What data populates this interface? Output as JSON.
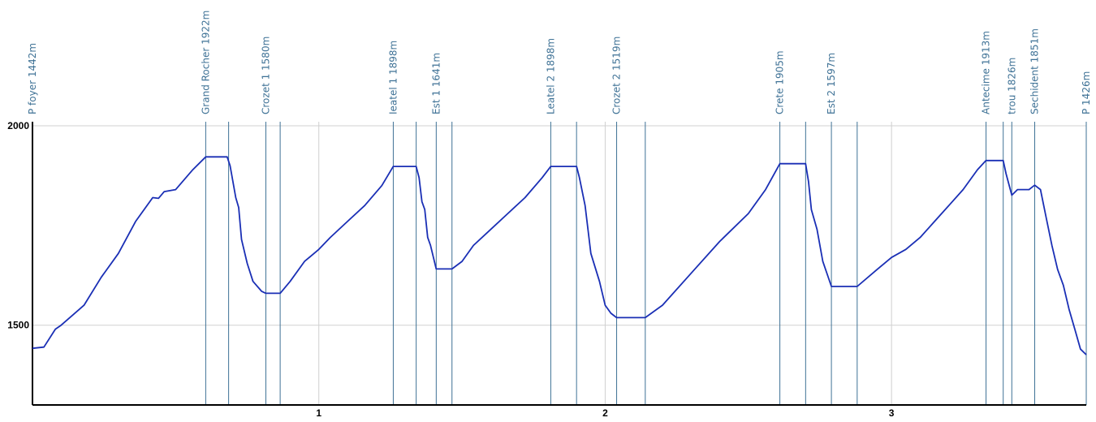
{
  "chart_data": {
    "type": "line",
    "title": "",
    "xlabel": "",
    "ylabel": "",
    "xlim": [
      0,
      3.68
    ],
    "ylim": [
      1300,
      2000
    ],
    "x_ticks": [
      1,
      2,
      3
    ],
    "y_ticks": [
      1500,
      2000
    ],
    "grid": true,
    "line_color": "#1a2fb5",
    "marker_color": "#3f7296",
    "waypoints": [
      {
        "label": "P foyer  1442m",
        "x": 0.0
      },
      {
        "label": "Grand Rocher  1922m",
        "x": 0.605
      },
      {
        "label": "Crozet 1  1580m",
        "x": 0.815
      },
      {
        "label": "Ieatel 1  1898m",
        "x": 1.26
      },
      {
        "label": "Est 1  1641m",
        "x": 1.41
      },
      {
        "label": "Leatel 2  1898m",
        "x": 1.81
      },
      {
        "label": "Crozet 2  1519m",
        "x": 2.04
      },
      {
        "label": "Crete  1905m",
        "x": 2.61
      },
      {
        "label": "Est 2  1597m",
        "x": 2.79
      },
      {
        "label": "Antecime  1913m",
        "x": 3.33
      },
      {
        "label": "trou  1826m",
        "x": 3.42
      },
      {
        "label": "Sechident  1851m",
        "x": 3.5
      },
      {
        "label": "P  1426m",
        "x": 3.68
      }
    ],
    "segment_markers_x": [
      0.685,
      0.865,
      1.34,
      1.465,
      1.9,
      2.14,
      2.7,
      2.88,
      3.39
    ],
    "series": [
      {
        "x": [
          0.0,
          0.04,
          0.08,
          0.1,
          0.18,
          0.24,
          0.3,
          0.36,
          0.42,
          0.44,
          0.46,
          0.5,
          0.56,
          0.605,
          0.68,
          0.69,
          0.71,
          0.72,
          0.73,
          0.75,
          0.77,
          0.8,
          0.815,
          0.865,
          0.9,
          0.95,
          1.0,
          1.04,
          1.1,
          1.16,
          1.22,
          1.26,
          1.34,
          1.35,
          1.36,
          1.37,
          1.38,
          1.39,
          1.41,
          1.465,
          1.5,
          1.54,
          1.6,
          1.66,
          1.72,
          1.78,
          1.81,
          1.9,
          1.91,
          1.93,
          1.95,
          1.98,
          2.0,
          2.02,
          2.04,
          2.14,
          2.2,
          2.3,
          2.4,
          2.5,
          2.56,
          2.61,
          2.7,
          2.71,
          2.72,
          2.74,
          2.76,
          2.79,
          2.88,
          2.95,
          3.0,
          3.05,
          3.1,
          3.15,
          3.2,
          3.25,
          3.3,
          3.33,
          3.39,
          3.4,
          3.42,
          3.44,
          3.48,
          3.5,
          3.52,
          3.54,
          3.56,
          3.58,
          3.6,
          3.62,
          3.64,
          3.66,
          3.68
        ],
        "y": [
          1442,
          1445,
          1490,
          1500,
          1550,
          1620,
          1680,
          1760,
          1820,
          1818,
          1835,
          1840,
          1890,
          1922,
          1922,
          1900,
          1820,
          1795,
          1715,
          1655,
          1610,
          1585,
          1580,
          1580,
          1610,
          1660,
          1690,
          1720,
          1760,
          1800,
          1850,
          1898,
          1898,
          1870,
          1810,
          1790,
          1720,
          1700,
          1641,
          1641,
          1660,
          1700,
          1740,
          1780,
          1820,
          1870,
          1898,
          1898,
          1870,
          1800,
          1680,
          1610,
          1550,
          1530,
          1519,
          1519,
          1550,
          1630,
          1710,
          1780,
          1840,
          1905,
          1905,
          1860,
          1790,
          1740,
          1660,
          1597,
          1597,
          1640,
          1670,
          1690,
          1720,
          1760,
          1800,
          1840,
          1890,
          1913,
          1913,
          1880,
          1826,
          1840,
          1840,
          1851,
          1840,
          1770,
          1700,
          1640,
          1600,
          1540,
          1490,
          1440,
          1426
        ]
      }
    ]
  }
}
